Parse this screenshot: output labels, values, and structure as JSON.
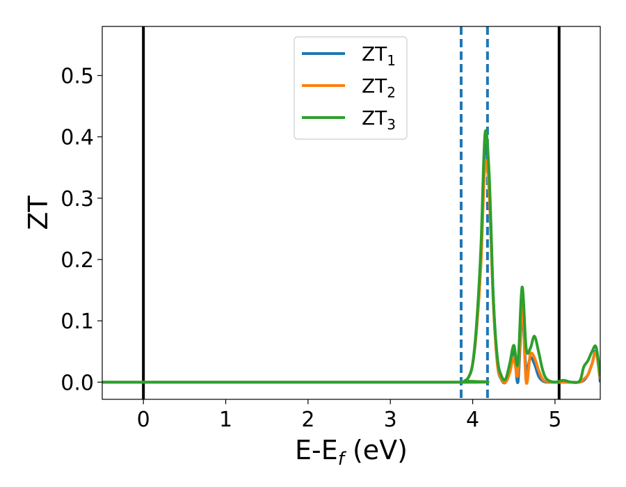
{
  "chart_data": {
    "type": "line",
    "xlabel": {
      "main": "E-E",
      "sub": "f",
      "suffix": " (eV)"
    },
    "ylabel": "ZT",
    "xlim": [
      -0.5,
      5.55
    ],
    "ylim": [
      -0.028,
      0.58
    ],
    "xticks": [
      0,
      1,
      2,
      3,
      4,
      5
    ],
    "xtick_labels": [
      "0",
      "1",
      "2",
      "3",
      "4",
      "5"
    ],
    "yticks": [
      0.0,
      0.1,
      0.2,
      0.3,
      0.4,
      0.5
    ],
    "ytick_labels": [
      "0.0",
      "0.1",
      "0.2",
      "0.3",
      "0.4",
      "0.5"
    ],
    "grid": false,
    "legend_position": "top-center",
    "vlines": [
      {
        "x": 0.0,
        "style": "solid",
        "color": "#000000"
      },
      {
        "x": 5.05,
        "style": "solid",
        "color": "#000000"
      },
      {
        "x": 3.86,
        "style": "dashed",
        "color": "#1f77b4"
      },
      {
        "x": 4.18,
        "style": "dashed",
        "color": "#1f77b4"
      }
    ],
    "series": [
      {
        "name": {
          "main": "ZT",
          "sub": "1"
        },
        "color": "#1f77b4",
        "x": [
          -0.5,
          3.85,
          3.9,
          3.95,
          4.0,
          4.05,
          4.1,
          4.15,
          4.2,
          4.25,
          4.3,
          4.35,
          4.4,
          4.45,
          4.5,
          4.55,
          4.6,
          4.65,
          4.7,
          4.75,
          4.8,
          4.85,
          4.9,
          5.0,
          5.1,
          5.2,
          5.3,
          5.35,
          5.4,
          5.45,
          5.5,
          5.55
        ],
        "y": [
          0.0,
          0.0,
          0.002,
          0.008,
          0.03,
          0.09,
          0.2,
          0.38,
          0.33,
          0.14,
          0.03,
          0.004,
          0.0,
          0.02,
          0.055,
          0.0,
          0.11,
          0.02,
          0.04,
          0.03,
          0.01,
          0.002,
          0.0,
          0.0,
          0.0,
          0.0,
          0.0,
          0.003,
          0.012,
          0.03,
          0.05,
          0.0
        ]
      },
      {
        "name": {
          "main": "ZT",
          "sub": "2"
        },
        "color": "#ff7f0e",
        "x": [
          -0.5,
          3.85,
          3.9,
          3.95,
          4.0,
          4.05,
          4.1,
          4.15,
          4.2,
          4.25,
          4.3,
          4.35,
          4.4,
          4.45,
          4.5,
          4.55,
          4.6,
          4.65,
          4.7,
          4.75,
          4.8,
          4.85,
          4.9,
          5.0,
          5.1,
          5.2,
          5.3,
          5.35,
          5.4,
          5.45,
          5.5,
          5.55
        ],
        "y": [
          0.0,
          0.0,
          0.002,
          0.008,
          0.03,
          0.09,
          0.19,
          0.355,
          0.31,
          0.13,
          0.03,
          0.005,
          0.0,
          0.015,
          0.04,
          0.012,
          0.125,
          0.0,
          0.045,
          0.04,
          0.02,
          0.005,
          0.001,
          0.0,
          0.0,
          0.0,
          0.0,
          0.005,
          0.012,
          0.03,
          0.048,
          0.005
        ]
      },
      {
        "name": {
          "main": "ZT",
          "sub": "3"
        },
        "color": "#2ca02c",
        "x": [
          -0.5,
          3.85,
          3.9,
          3.95,
          4.0,
          4.05,
          4.1,
          4.15,
          4.2,
          4.25,
          4.3,
          4.35,
          4.4,
          4.45,
          4.5,
          4.55,
          4.6,
          4.65,
          4.7,
          4.75,
          4.8,
          4.85,
          4.9,
          5.0,
          5.1,
          5.2,
          5.3,
          5.35,
          5.4,
          5.45,
          5.5,
          5.55
        ],
        "y": [
          0.0,
          0.0,
          0.002,
          0.008,
          0.03,
          0.1,
          0.22,
          0.405,
          0.34,
          0.14,
          0.04,
          0.01,
          0.005,
          0.03,
          0.06,
          0.03,
          0.155,
          0.055,
          0.055,
          0.075,
          0.05,
          0.02,
          0.005,
          0.0,
          0.003,
          0.0,
          0.002,
          0.025,
          0.035,
          0.05,
          0.057,
          0.01
        ]
      }
    ]
  }
}
